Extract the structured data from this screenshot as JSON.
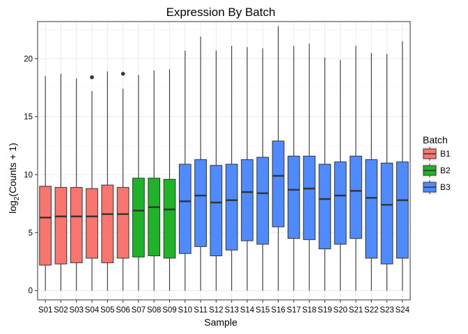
{
  "chart_data": {
    "type": "boxplot",
    "title": "Expression By Batch",
    "xlabel": "Sample",
    "ylabel_prefix": "log",
    "ylabel_sub": "2",
    "ylabel_suffix": "(Counts + 1)",
    "ylim": [
      -0.8,
      23.2
    ],
    "yticks": [
      0,
      5,
      10,
      15,
      20
    ],
    "grid": true,
    "legend": {
      "title": "Batch",
      "position": "right",
      "items": [
        {
          "label": "B1",
          "color": "#F8766D"
        },
        {
          "label": "B2",
          "color": "#1FB327"
        },
        {
          "label": "B3",
          "color": "#4F8BFF"
        }
      ]
    },
    "samples": [
      {
        "name": "S01",
        "batch": "B1",
        "min": 0,
        "q1": 2.2,
        "median": 6.3,
        "q3": 9.0,
        "max": 18.5,
        "outliers": []
      },
      {
        "name": "S02",
        "batch": "B1",
        "min": 0,
        "q1": 2.3,
        "median": 6.4,
        "q3": 8.9,
        "max": 18.7,
        "outliers": []
      },
      {
        "name": "S03",
        "batch": "B1",
        "min": 0,
        "q1": 2.4,
        "median": 6.4,
        "q3": 8.9,
        "max": 18.3,
        "outliers": []
      },
      {
        "name": "S04",
        "batch": "B1",
        "min": 0,
        "q1": 2.8,
        "median": 6.4,
        "q3": 8.8,
        "max": 17.2,
        "outliers": [
          18.4
        ]
      },
      {
        "name": "S05",
        "batch": "B1",
        "min": 0,
        "q1": 2.4,
        "median": 6.6,
        "q3": 9.1,
        "max": 18.9,
        "outliers": []
      },
      {
        "name": "S06",
        "batch": "B1",
        "min": 0,
        "q1": 2.8,
        "median": 6.6,
        "q3": 8.9,
        "max": 17.4,
        "outliers": [
          18.7
        ]
      },
      {
        "name": "S07",
        "batch": "B2",
        "min": 0,
        "q1": 2.9,
        "median": 6.9,
        "q3": 9.7,
        "max": 18.6,
        "outliers": []
      },
      {
        "name": "S08",
        "batch": "B2",
        "min": 0,
        "q1": 3.0,
        "median": 7.2,
        "q3": 9.7,
        "max": 19.0,
        "outliers": []
      },
      {
        "name": "S09",
        "batch": "B2",
        "min": 0,
        "q1": 2.8,
        "median": 7.0,
        "q3": 9.6,
        "max": 19.1,
        "outliers": []
      },
      {
        "name": "S10",
        "batch": "B3",
        "min": 0,
        "q1": 3.2,
        "median": 7.7,
        "q3": 10.9,
        "max": 20.7,
        "outliers": []
      },
      {
        "name": "S11",
        "batch": "B3",
        "min": 0,
        "q1": 3.8,
        "median": 8.2,
        "q3": 11.3,
        "max": 21.9,
        "outliers": []
      },
      {
        "name": "S12",
        "batch": "B3",
        "min": 0,
        "q1": 3.0,
        "median": 7.6,
        "q3": 10.8,
        "max": 20.7,
        "outliers": []
      },
      {
        "name": "S13",
        "batch": "B3",
        "min": 0,
        "q1": 3.5,
        "median": 7.8,
        "q3": 10.9,
        "max": 21.1,
        "outliers": []
      },
      {
        "name": "S14",
        "batch": "B3",
        "min": 0,
        "q1": 4.3,
        "median": 8.5,
        "q3": 11.3,
        "max": 21.0,
        "outliers": []
      },
      {
        "name": "S15",
        "batch": "B3",
        "min": 0,
        "q1": 4.0,
        "median": 8.4,
        "q3": 11.5,
        "max": 20.9,
        "outliers": []
      },
      {
        "name": "S16",
        "batch": "B3",
        "min": 0,
        "q1": 5.5,
        "median": 9.9,
        "q3": 12.9,
        "max": 22.8,
        "outliers": []
      },
      {
        "name": "S17",
        "batch": "B3",
        "min": 0,
        "q1": 4.5,
        "median": 8.7,
        "q3": 11.6,
        "max": 21.1,
        "outliers": []
      },
      {
        "name": "S18",
        "batch": "B3",
        "min": 0,
        "q1": 4.4,
        "median": 8.8,
        "q3": 11.6,
        "max": 21.3,
        "outliers": []
      },
      {
        "name": "S19",
        "batch": "B3",
        "min": 0,
        "q1": 3.6,
        "median": 7.9,
        "q3": 10.9,
        "max": 20.1,
        "outliers": []
      },
      {
        "name": "S20",
        "batch": "B3",
        "min": 0,
        "q1": 4.0,
        "median": 8.2,
        "q3": 11.1,
        "max": 19.9,
        "outliers": []
      },
      {
        "name": "S21",
        "batch": "B3",
        "min": 0,
        "q1": 4.5,
        "median": 8.6,
        "q3": 11.6,
        "max": 21.1,
        "outliers": []
      },
      {
        "name": "S22",
        "batch": "B3",
        "min": 0,
        "q1": 2.8,
        "median": 8.0,
        "q3": 11.3,
        "max": 20.5,
        "outliers": []
      },
      {
        "name": "S23",
        "batch": "B3",
        "min": 0,
        "q1": 2.3,
        "median": 7.4,
        "q3": 11.0,
        "max": 20.4,
        "outliers": []
      },
      {
        "name": "S24",
        "batch": "B3",
        "min": 0,
        "q1": 2.8,
        "median": 7.8,
        "q3": 11.1,
        "max": 21.5,
        "outliers": []
      }
    ]
  }
}
